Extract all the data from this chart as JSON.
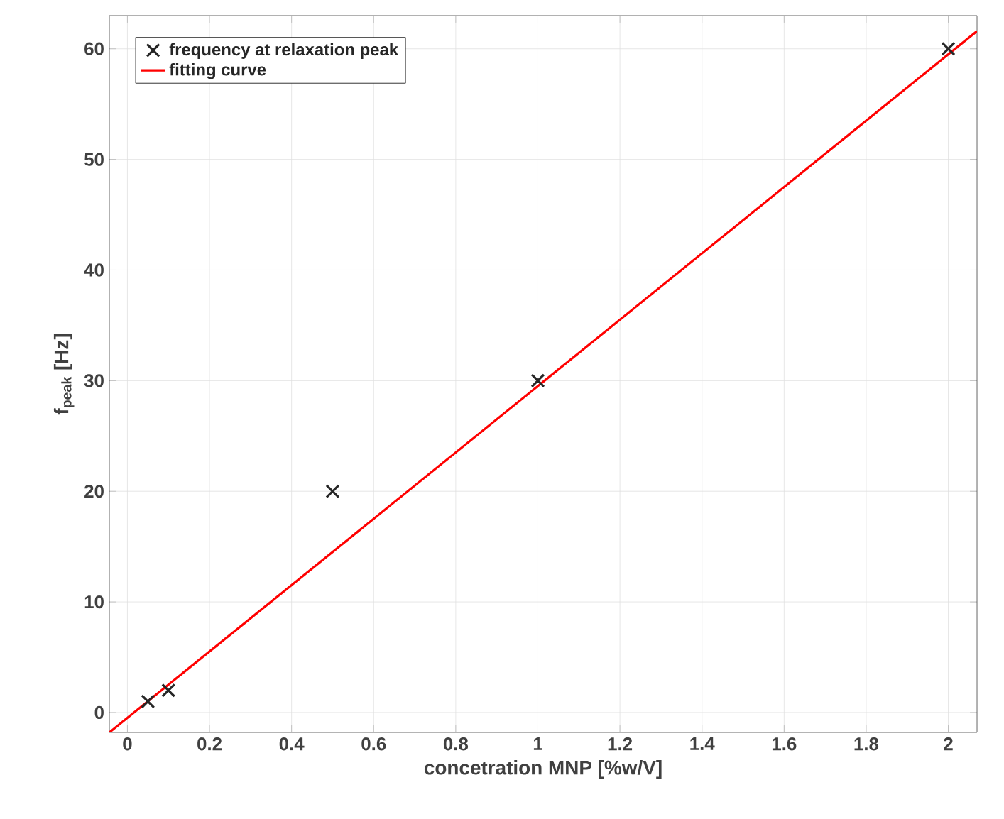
{
  "chart_data": {
    "type": "scatter",
    "xlabel": "concetration MNP [%w/V]",
    "ylabel": "f$_{peak}$ [Hz]",
    "xlim": [
      -0.044,
      2.07
    ],
    "ylim": [
      -1.8,
      63
    ],
    "xticks": [
      0,
      0.2,
      0.4,
      0.6,
      0.8,
      1,
      1.2,
      1.4,
      1.6,
      1.8,
      2
    ],
    "yticks": [
      0,
      10,
      20,
      30,
      40,
      50,
      60
    ],
    "grid": true,
    "legend": "top left",
    "series": [
      {
        "name": "frequency at relaxation peak",
        "marker": "cross",
        "color": "#262626",
        "x": [
          0.05,
          0.1,
          0.5,
          1,
          2
        ],
        "values": [
          1,
          2,
          20,
          30,
          60
        ]
      },
      {
        "name": "fitting curve",
        "type": "line",
        "marker": "none",
        "color": "#ff0000",
        "x": [
          -0.044,
          2.07
        ],
        "values": [
          -1.8,
          61.6
        ]
      }
    ]
  }
}
